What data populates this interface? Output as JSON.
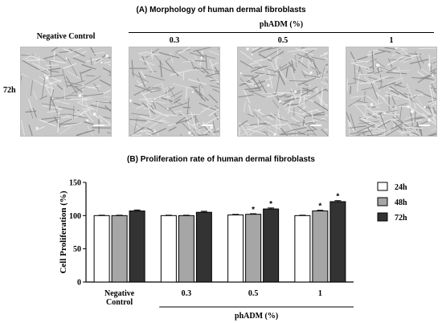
{
  "panel_a": {
    "title": "(A) Morphology of human dermal fibroblasts",
    "group_label": "phADM (%)",
    "row_label": "72h",
    "columns": [
      "Negative Control",
      "0.3",
      "0.5",
      "1"
    ]
  },
  "panel_b": {
    "title": "(B) Proliferation rate of human dermal fibroblasts"
  },
  "chart_data": {
    "type": "bar",
    "title": "(B) Proliferation rate of human dermal fibroblasts",
    "ylabel": "Cell Proliferation (%)",
    "xlabel": "phADM (%)",
    "ylim": [
      0,
      150
    ],
    "yticks": [
      0,
      50,
      100,
      150
    ],
    "categories": [
      "Negative Control",
      "0.3",
      "0.5",
      "1"
    ],
    "category_lines": [
      [
        "Negative",
        "Control"
      ],
      [
        "0.3"
      ],
      [
        "0.5"
      ],
      [
        "1"
      ]
    ],
    "series": [
      {
        "name": "24h",
        "values": [
          100,
          100,
          101,
          100
        ],
        "errors": [
          0.6,
          0.6,
          0.8,
          0.6
        ],
        "color": "#ffffff",
        "sig": [
          false,
          false,
          false,
          false
        ]
      },
      {
        "name": "48h",
        "values": [
          100,
          100,
          102,
          107
        ],
        "errors": [
          0.6,
          0.6,
          0.8,
          1.0
        ],
        "color": "#a6a6a6",
        "sig": [
          false,
          false,
          true,
          true
        ]
      },
      {
        "name": "72h",
        "values": [
          107,
          105,
          110,
          121
        ],
        "errors": [
          1.5,
          1.5,
          1.5,
          1.5
        ],
        "color": "#333333",
        "sig": [
          false,
          false,
          true,
          true
        ]
      }
    ],
    "significance_marker": "*",
    "legend_placement": "right"
  }
}
